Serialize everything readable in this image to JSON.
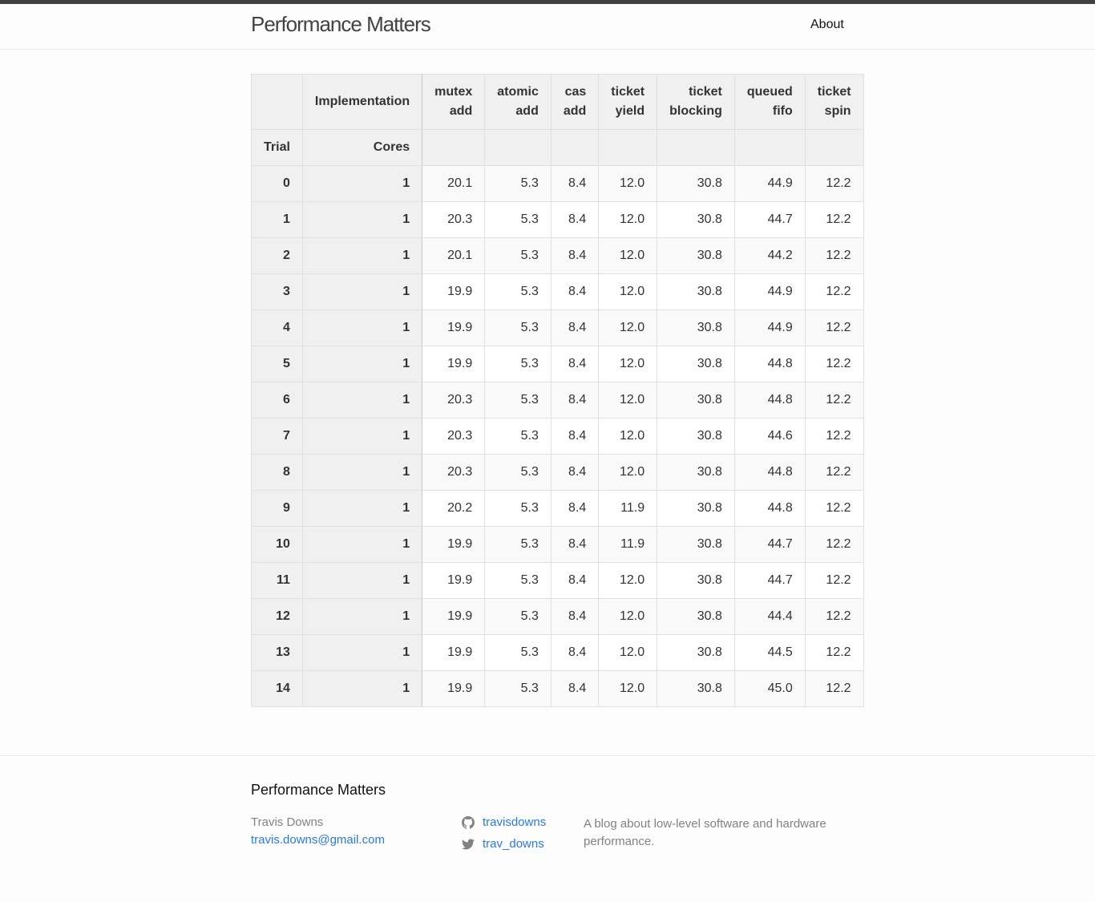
{
  "header": {
    "site_title": "Performance Matters",
    "nav": [
      "About"
    ]
  },
  "table": {
    "header_row1": [
      "",
      "Implementation",
      "mutex\nadd",
      "atomic\nadd",
      "cas\nadd",
      "ticket\nyield",
      "ticket\nblocking",
      "queued\nfifo",
      "ticket\nspin"
    ],
    "header_row2": [
      "Trial",
      "Cores",
      "",
      "",
      "",
      "",
      "",
      "",
      ""
    ],
    "rows": [
      [
        "0",
        "1",
        "20.1",
        "5.3",
        "8.4",
        "12.0",
        "30.8",
        "44.9",
        "12.2"
      ],
      [
        "1",
        "1",
        "20.3",
        "5.3",
        "8.4",
        "12.0",
        "30.8",
        "44.7",
        "12.2"
      ],
      [
        "2",
        "1",
        "20.1",
        "5.3",
        "8.4",
        "12.0",
        "30.8",
        "44.2",
        "12.2"
      ],
      [
        "3",
        "1",
        "19.9",
        "5.3",
        "8.4",
        "12.0",
        "30.8",
        "44.9",
        "12.2"
      ],
      [
        "4",
        "1",
        "19.9",
        "5.3",
        "8.4",
        "12.0",
        "30.8",
        "44.9",
        "12.2"
      ],
      [
        "5",
        "1",
        "19.9",
        "5.3",
        "8.4",
        "12.0",
        "30.8",
        "44.8",
        "12.2"
      ],
      [
        "6",
        "1",
        "20.3",
        "5.3",
        "8.4",
        "12.0",
        "30.8",
        "44.8",
        "12.2"
      ],
      [
        "7",
        "1",
        "20.3",
        "5.3",
        "8.4",
        "12.0",
        "30.8",
        "44.6",
        "12.2"
      ],
      [
        "8",
        "1",
        "20.3",
        "5.3",
        "8.4",
        "12.0",
        "30.8",
        "44.8",
        "12.2"
      ],
      [
        "9",
        "1",
        "20.2",
        "5.3",
        "8.4",
        "11.9",
        "30.8",
        "44.8",
        "12.2"
      ],
      [
        "10",
        "1",
        "19.9",
        "5.3",
        "8.4",
        "11.9",
        "30.8",
        "44.7",
        "12.2"
      ],
      [
        "11",
        "1",
        "19.9",
        "5.3",
        "8.4",
        "12.0",
        "30.8",
        "44.7",
        "12.2"
      ],
      [
        "12",
        "1",
        "19.9",
        "5.3",
        "8.4",
        "12.0",
        "30.8",
        "44.4",
        "12.2"
      ],
      [
        "13",
        "1",
        "19.9",
        "5.3",
        "8.4",
        "12.0",
        "30.8",
        "44.5",
        "12.2"
      ],
      [
        "14",
        "1",
        "19.9",
        "5.3",
        "8.4",
        "12.0",
        "30.8",
        "45.0",
        "12.2"
      ]
    ]
  },
  "footer": {
    "heading": "Performance Matters",
    "author": "Travis Downs",
    "email": "travis.downs@gmail.com",
    "github": {
      "icon": "github-icon",
      "label": "travisdowns"
    },
    "twitter": {
      "icon": "twitter-icon",
      "label": "trav_downs"
    },
    "description": "A blog about low-level software and hardware performance."
  },
  "colors": {
    "link": "#2a7ae2",
    "muted": "#828282",
    "header_bg": "#f0f0f0"
  }
}
